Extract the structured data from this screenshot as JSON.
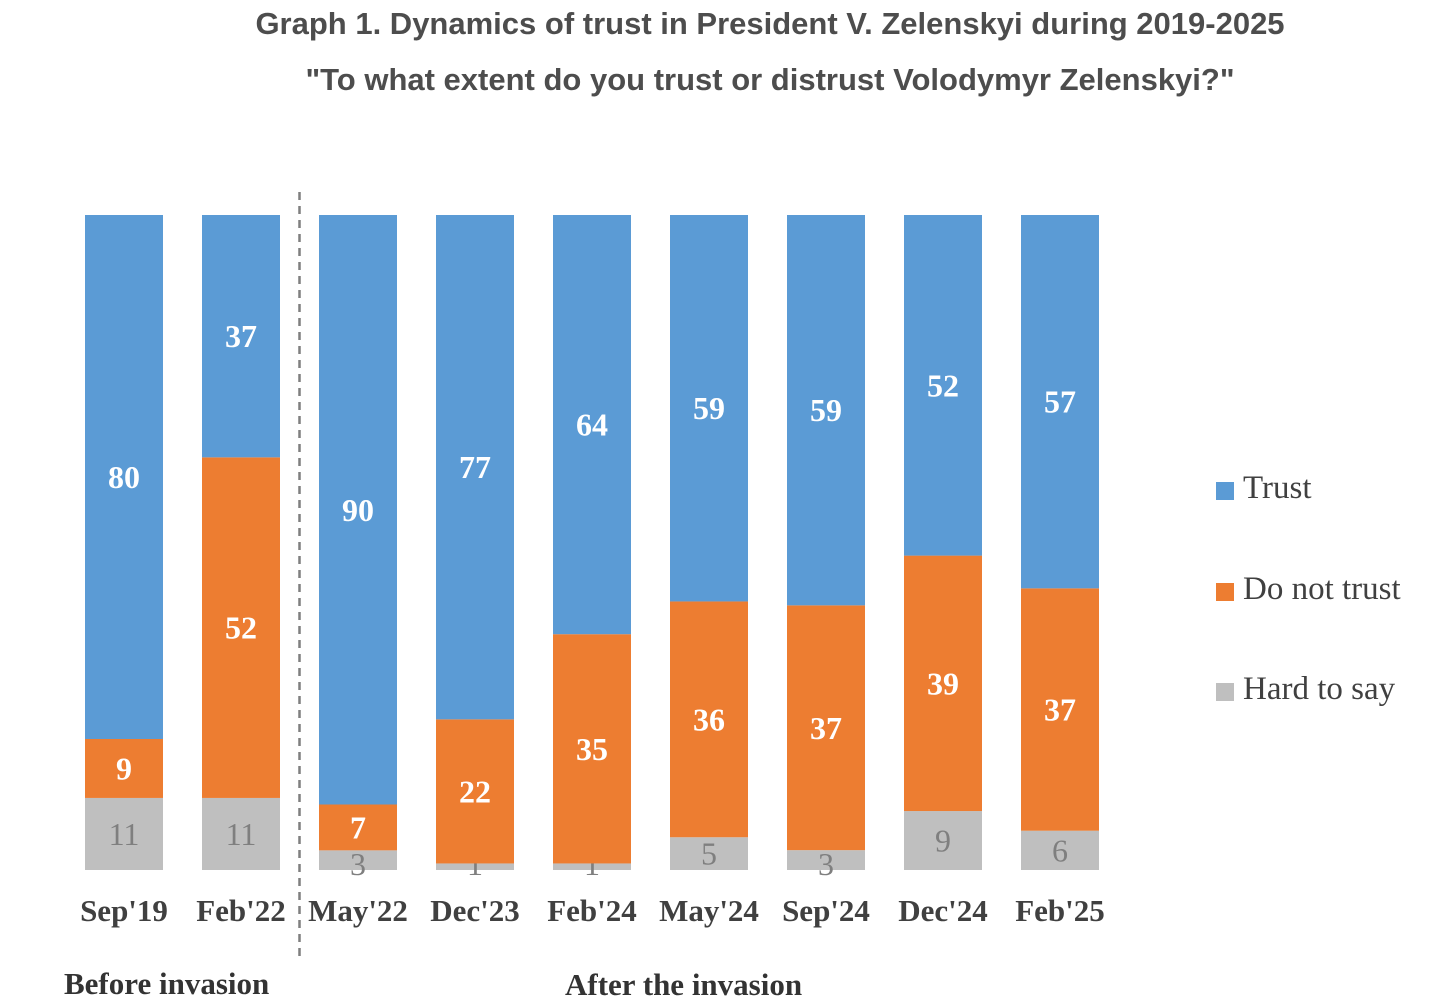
{
  "title": "Graph 1. Dynamics of trust in President V. Zelenskyi during 2019-2025",
  "subtitle": "\"To what extent do you trust or distrust Volodymyr Zelenskyi?\"",
  "period_labels": {
    "before": "Before invasion",
    "after": "After the invasion"
  },
  "colors": {
    "trust": "#5b9bd5",
    "distrust": "#ed7d31",
    "hard": "#bfbfbf",
    "divider": "#7f7f7f"
  },
  "chart_data": {
    "type": "bar",
    "stacked": true,
    "categories": [
      "Sep'19",
      "Feb'22",
      "May'22",
      "Dec'23",
      "Feb'24",
      "May'24",
      "Sep'24",
      "Dec'24",
      "Feb'25"
    ],
    "series": [
      {
        "name": "Hard to say",
        "values": [
          11,
          11,
          3,
          1,
          1,
          5,
          3,
          9,
          6
        ],
        "color": "#bfbfbf"
      },
      {
        "name": "Do not trust",
        "values": [
          9,
          52,
          7,
          22,
          35,
          36,
          37,
          39,
          37
        ],
        "color": "#ed7d31"
      },
      {
        "name": "Trust",
        "values": [
          80,
          37,
          90,
          77,
          64,
          59,
          59,
          52,
          57
        ],
        "color": "#5b9bd5"
      }
    ],
    "legend": [
      "Trust",
      "Do not trust",
      "Hard to say"
    ],
    "legend_position": "right",
    "divider_after_category": "Feb'22",
    "ylim": [
      0,
      100
    ],
    "grid": false
  }
}
